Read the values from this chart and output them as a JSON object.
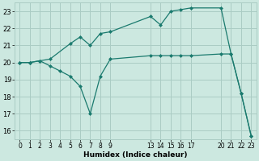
{
  "xlabel": "Humidex (Indice chaleur)",
  "bg_color": "#cce8e0",
  "grid_color": "#aaccc4",
  "line_color": "#1a7a6e",
  "xlim": [
    -0.5,
    23.5
  ],
  "ylim": [
    15.5,
    23.5
  ],
  "yticks": [
    16,
    17,
    18,
    19,
    20,
    21,
    22,
    23
  ],
  "xtick_positions": [
    0,
    1,
    2,
    3,
    4,
    5,
    6,
    7,
    8,
    9,
    13,
    14,
    15,
    16,
    17,
    20,
    21,
    22,
    23
  ],
  "xtick_labels": [
    "0",
    "1",
    "2",
    "3",
    "4",
    "5",
    "6",
    "7",
    "8",
    "9",
    "13",
    "14",
    "15",
    "16",
    "17",
    "20",
    "21",
    "22",
    "23"
  ],
  "series1_x": [
    0,
    1,
    2,
    3,
    5,
    6,
    7,
    8,
    9,
    13,
    14,
    15,
    16,
    17,
    20,
    21,
    22,
    23
  ],
  "series1_y": [
    20.0,
    20.0,
    20.1,
    20.2,
    21.1,
    21.5,
    21.0,
    21.7,
    21.8,
    22.7,
    22.2,
    23.0,
    23.1,
    23.2,
    23.2,
    20.5,
    18.2,
    15.7
  ],
  "series2_x": [
    0,
    1,
    2,
    3,
    4,
    5,
    6,
    7,
    8,
    9,
    13,
    14,
    15,
    16,
    17,
    20,
    21,
    22,
    23
  ],
  "series2_y": [
    20.0,
    20.0,
    20.1,
    19.8,
    19.5,
    19.2,
    18.6,
    17.0,
    19.2,
    20.2,
    20.4,
    20.4,
    20.4,
    20.4,
    20.4,
    20.5,
    20.5,
    18.2,
    15.7
  ]
}
